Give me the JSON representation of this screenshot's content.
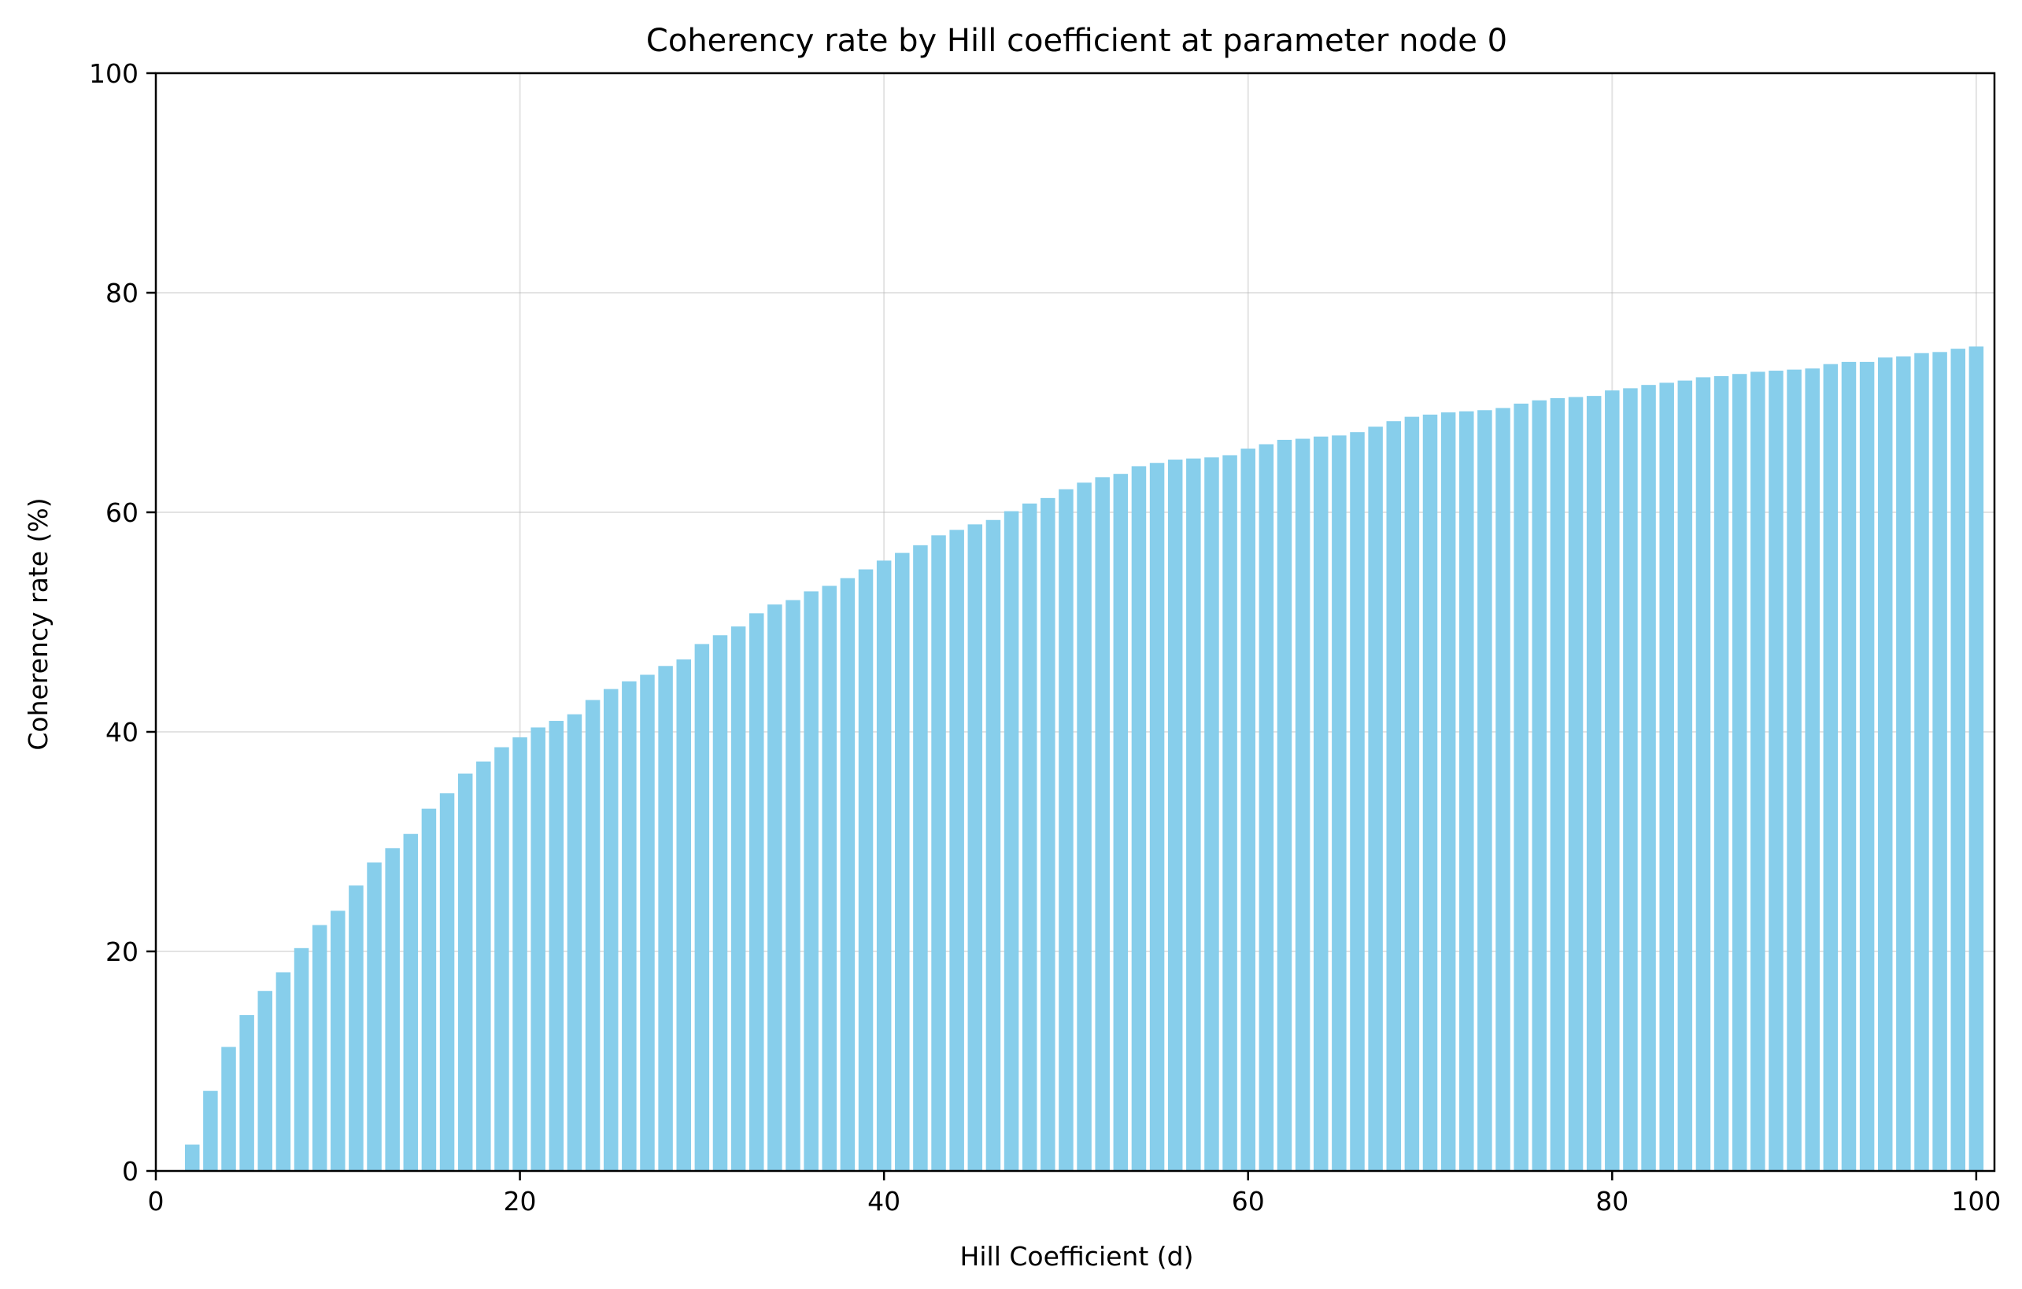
{
  "chart_data": {
    "type": "bar",
    "title": "Coherency rate by Hill coefficient at parameter node 0",
    "xlabel": "Hill Coefficient (d)",
    "ylabel": "Coherency rate (%)",
    "xlim": [
      0,
      101
    ],
    "ylim": [
      0,
      100
    ],
    "xticks": [
      0,
      20,
      40,
      60,
      80,
      100
    ],
    "yticks": [
      0,
      20,
      40,
      60,
      80,
      100
    ],
    "grid": true,
    "bar_color": "#87CEEB",
    "x": [
      2,
      3,
      4,
      5,
      6,
      7,
      8,
      9,
      10,
      11,
      12,
      13,
      14,
      15,
      16,
      17,
      18,
      19,
      20,
      21,
      22,
      23,
      24,
      25,
      26,
      27,
      28,
      29,
      30,
      31,
      32,
      33,
      34,
      35,
      36,
      37,
      38,
      39,
      40,
      41,
      42,
      43,
      44,
      45,
      46,
      47,
      48,
      49,
      50,
      51,
      52,
      53,
      54,
      55,
      56,
      57,
      58,
      59,
      60,
      61,
      62,
      63,
      64,
      65,
      66,
      67,
      68,
      69,
      70,
      71,
      72,
      73,
      74,
      75,
      76,
      77,
      78,
      79,
      80,
      81,
      82,
      83,
      84,
      85,
      86,
      87,
      88,
      89,
      90,
      91,
      92,
      93,
      94,
      95,
      96,
      97,
      98,
      99,
      100
    ],
    "values": [
      2.4,
      7.3,
      11.3,
      14.2,
      16.4,
      18.1,
      20.3,
      22.4,
      23.7,
      26.0,
      28.1,
      29.4,
      30.7,
      33.0,
      34.4,
      36.2,
      37.3,
      38.6,
      39.5,
      40.4,
      41.0,
      41.6,
      42.9,
      43.9,
      44.6,
      45.2,
      46.0,
      46.6,
      48.0,
      48.8,
      49.6,
      50.8,
      51.6,
      52.0,
      52.8,
      53.3,
      54.0,
      54.8,
      55.6,
      56.3,
      57.0,
      57.9,
      58.4,
      58.9,
      59.3,
      60.1,
      60.8,
      61.3,
      62.1,
      62.7,
      63.2,
      63.5,
      64.2,
      64.5,
      64.8,
      64.9,
      65.0,
      65.2,
      65.8,
      66.2,
      66.6,
      66.7,
      66.9,
      67.0,
      67.3,
      67.8,
      68.3,
      68.7,
      68.9,
      69.1,
      69.2,
      69.3,
      69.5,
      69.9,
      70.2,
      70.4,
      70.5,
      70.6,
      71.1,
      71.3,
      71.6,
      71.8,
      72.0,
      72.3,
      72.4,
      72.6,
      72.8,
      72.9,
      73.0,
      73.1,
      73.5,
      73.7,
      73.7,
      74.1,
      74.2,
      74.5,
      74.6,
      74.9,
      75.1
    ]
  }
}
